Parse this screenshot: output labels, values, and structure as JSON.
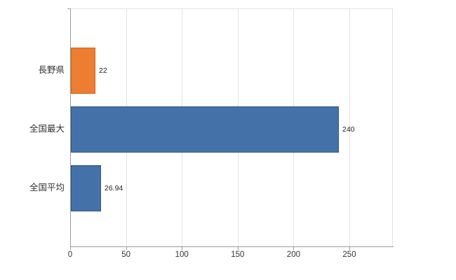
{
  "chart_data": {
    "type": "bar",
    "orientation": "horizontal",
    "title": "",
    "xlabel": "",
    "ylabel": "",
    "categories": [
      "長野県",
      "全国最大",
      "全国平均"
    ],
    "values": [
      22,
      240,
      26.94
    ],
    "value_labels": [
      "22",
      "240",
      "26.94"
    ],
    "bar_colors": [
      "#ED7D31",
      "#4472A8",
      "#4472A8"
    ],
    "bar_border_colors": [
      "#C9661F",
      "#2F5586",
      "#2F5586"
    ],
    "xticks": [
      0,
      50,
      100,
      150,
      200,
      250
    ],
    "xlim": [
      0,
      289
    ],
    "grid": "vertical",
    "legend": "none",
    "background": "#ffffff"
  },
  "style": {
    "grid_color": "#e3e3e3",
    "axis_color": "#9b9b9b",
    "text_color": "#333333"
  }
}
